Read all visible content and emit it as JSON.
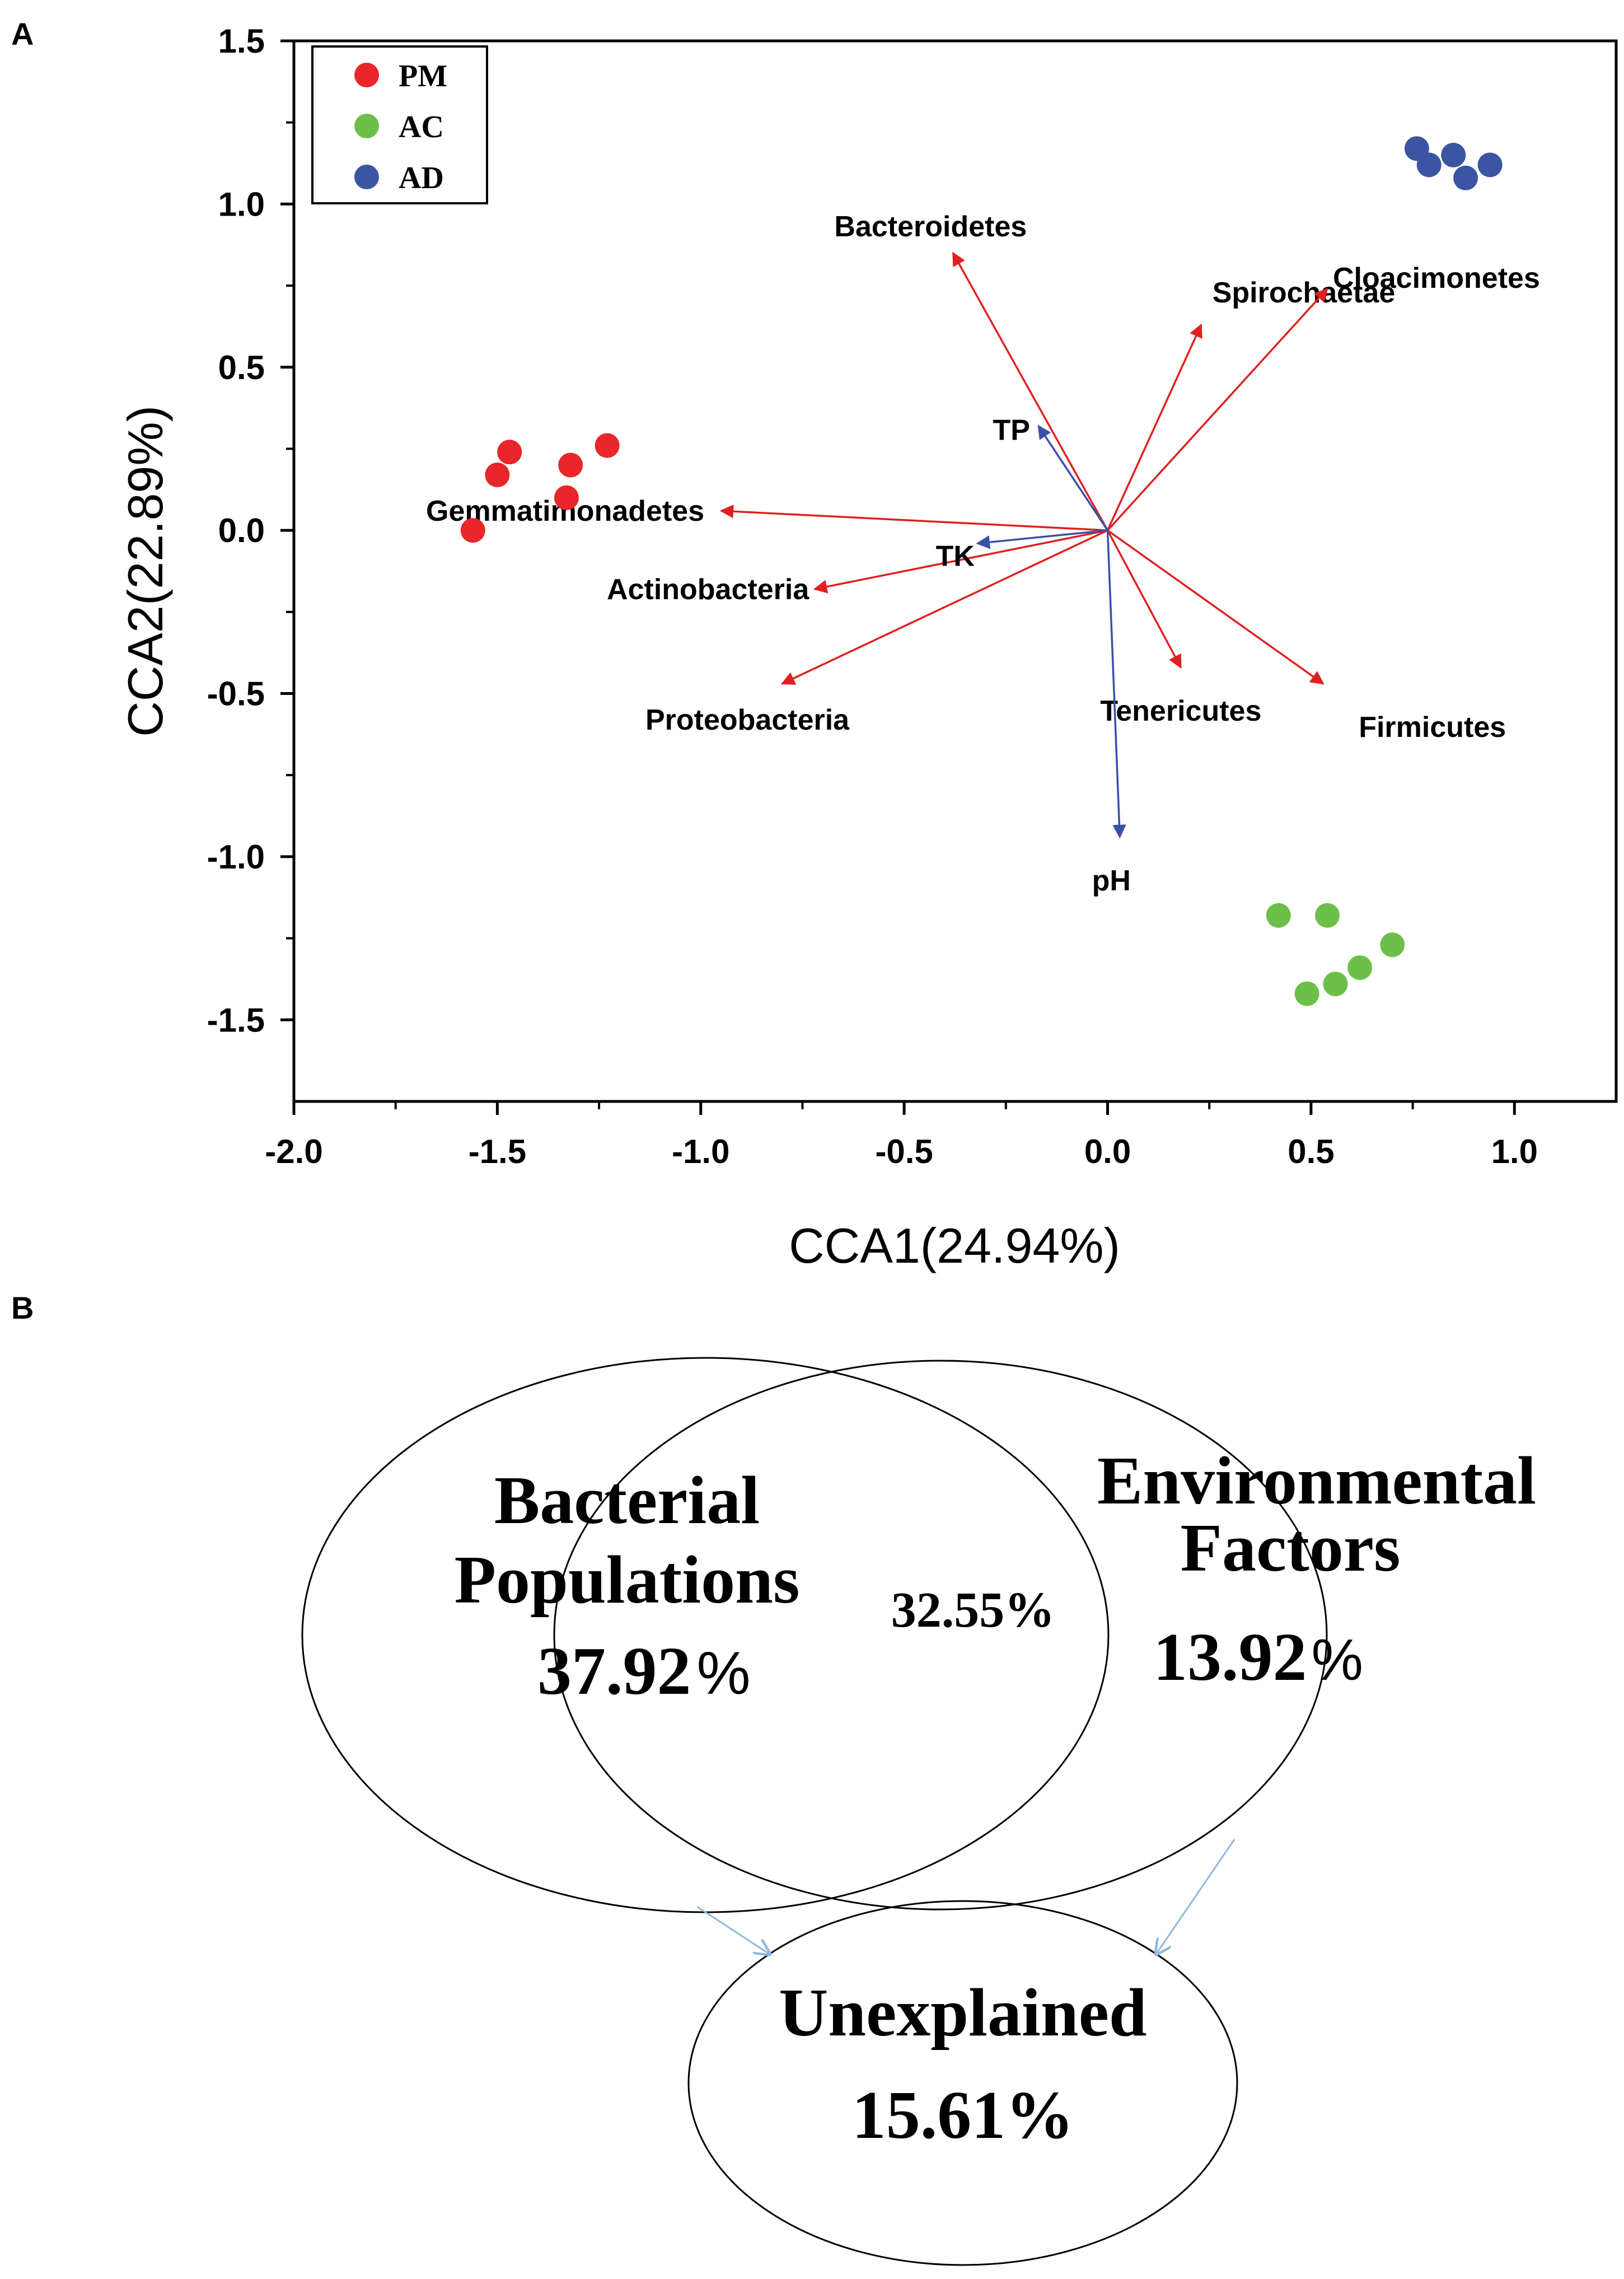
{
  "panels": {
    "a_letter": "A",
    "b_letter": "B"
  },
  "chart_data": {
    "type": "scatter",
    "subtype": "CCA biplot",
    "title": "",
    "xlabel": "CCA1(24.94%)",
    "ylabel": "CCA2(22.89%)",
    "xlim": [
      -2.0,
      1.25
    ],
    "ylim": [
      -1.75,
      1.5
    ],
    "xticks": [
      -2.0,
      -1.5,
      -1.0,
      -0.5,
      0.0,
      0.5,
      1.0
    ],
    "xtick_labels": [
      "-2.0",
      "-1.5",
      "-1.0",
      "-0.5",
      "0.0",
      "0.5",
      "1.0"
    ],
    "yticks": [
      1.5,
      1.0,
      0.5,
      0.0,
      -0.5,
      -1.0,
      -1.5
    ],
    "ytick_labels": [
      "1.5",
      "1.0",
      "0.5",
      "0.0",
      "-0.5",
      "-1.0",
      "-1.5"
    ],
    "legend_position": "top-left",
    "series": [
      {
        "name": "PM",
        "color": "#e8262b",
        "points": [
          [
            -1.56,
            0.0
          ],
          [
            -1.5,
            0.17
          ],
          [
            -1.47,
            0.24
          ],
          [
            -1.33,
            0.1
          ],
          [
            -1.32,
            0.2
          ],
          [
            -1.23,
            0.26
          ]
        ]
      },
      {
        "name": "AC",
        "color": "#6cc04a",
        "points": [
          [
            0.42,
            -1.18
          ],
          [
            0.54,
            -1.18
          ],
          [
            0.7,
            -1.27
          ],
          [
            0.62,
            -1.34
          ],
          [
            0.56,
            -1.39
          ],
          [
            0.49,
            -1.42
          ]
        ]
      },
      {
        "name": "AD",
        "color": "#3a55a4",
        "points": [
          [
            0.76,
            1.17
          ],
          [
            0.79,
            1.12
          ],
          [
            0.85,
            1.15
          ],
          [
            0.88,
            1.08
          ],
          [
            0.94,
            1.12
          ]
        ]
      }
    ],
    "species_vectors": {
      "color": "#e02020",
      "items": [
        {
          "name": "Bacteroidetes",
          "x": -0.38,
          "y": 0.85
        },
        {
          "name": "Spirochaetae",
          "x": 0.23,
          "y": 0.63
        },
        {
          "name": "Cloacimonetes",
          "x": 0.54,
          "y": 0.74
        },
        {
          "name": "Gemmatimonadetes",
          "x": -0.95,
          "y": 0.06
        },
        {
          "name": "Actinobacteria",
          "x": -0.72,
          "y": -0.18
        },
        {
          "name": "Proteobacteria",
          "x": -0.8,
          "y": -0.47
        },
        {
          "name": "Tenericutes",
          "x": 0.18,
          "y": -0.42
        },
        {
          "name": "Firmicutes",
          "x": 0.53,
          "y": -0.47
        }
      ]
    },
    "environmental_vectors": {
      "color": "#3a50a8",
      "items": [
        {
          "name": "TP",
          "x": -0.17,
          "y": 0.32
        },
        {
          "name": "TK",
          "x": -0.32,
          "y": -0.04
        },
        {
          "name": "pH",
          "x": 0.03,
          "y": -0.94
        }
      ]
    }
  },
  "venn": {
    "left": {
      "title_line1": "Bacterial",
      "title_line2": "Populations",
      "value": "37.92",
      "percent": "%"
    },
    "right": {
      "title_line1": "Environmental",
      "title_line2": "Factors",
      "value": "13.92",
      "percent": "%"
    },
    "overlap": {
      "value": "32.55%"
    },
    "bottom": {
      "title": "Unexplained",
      "value": "15.61%"
    },
    "arrow_color": "#8fb8de"
  }
}
